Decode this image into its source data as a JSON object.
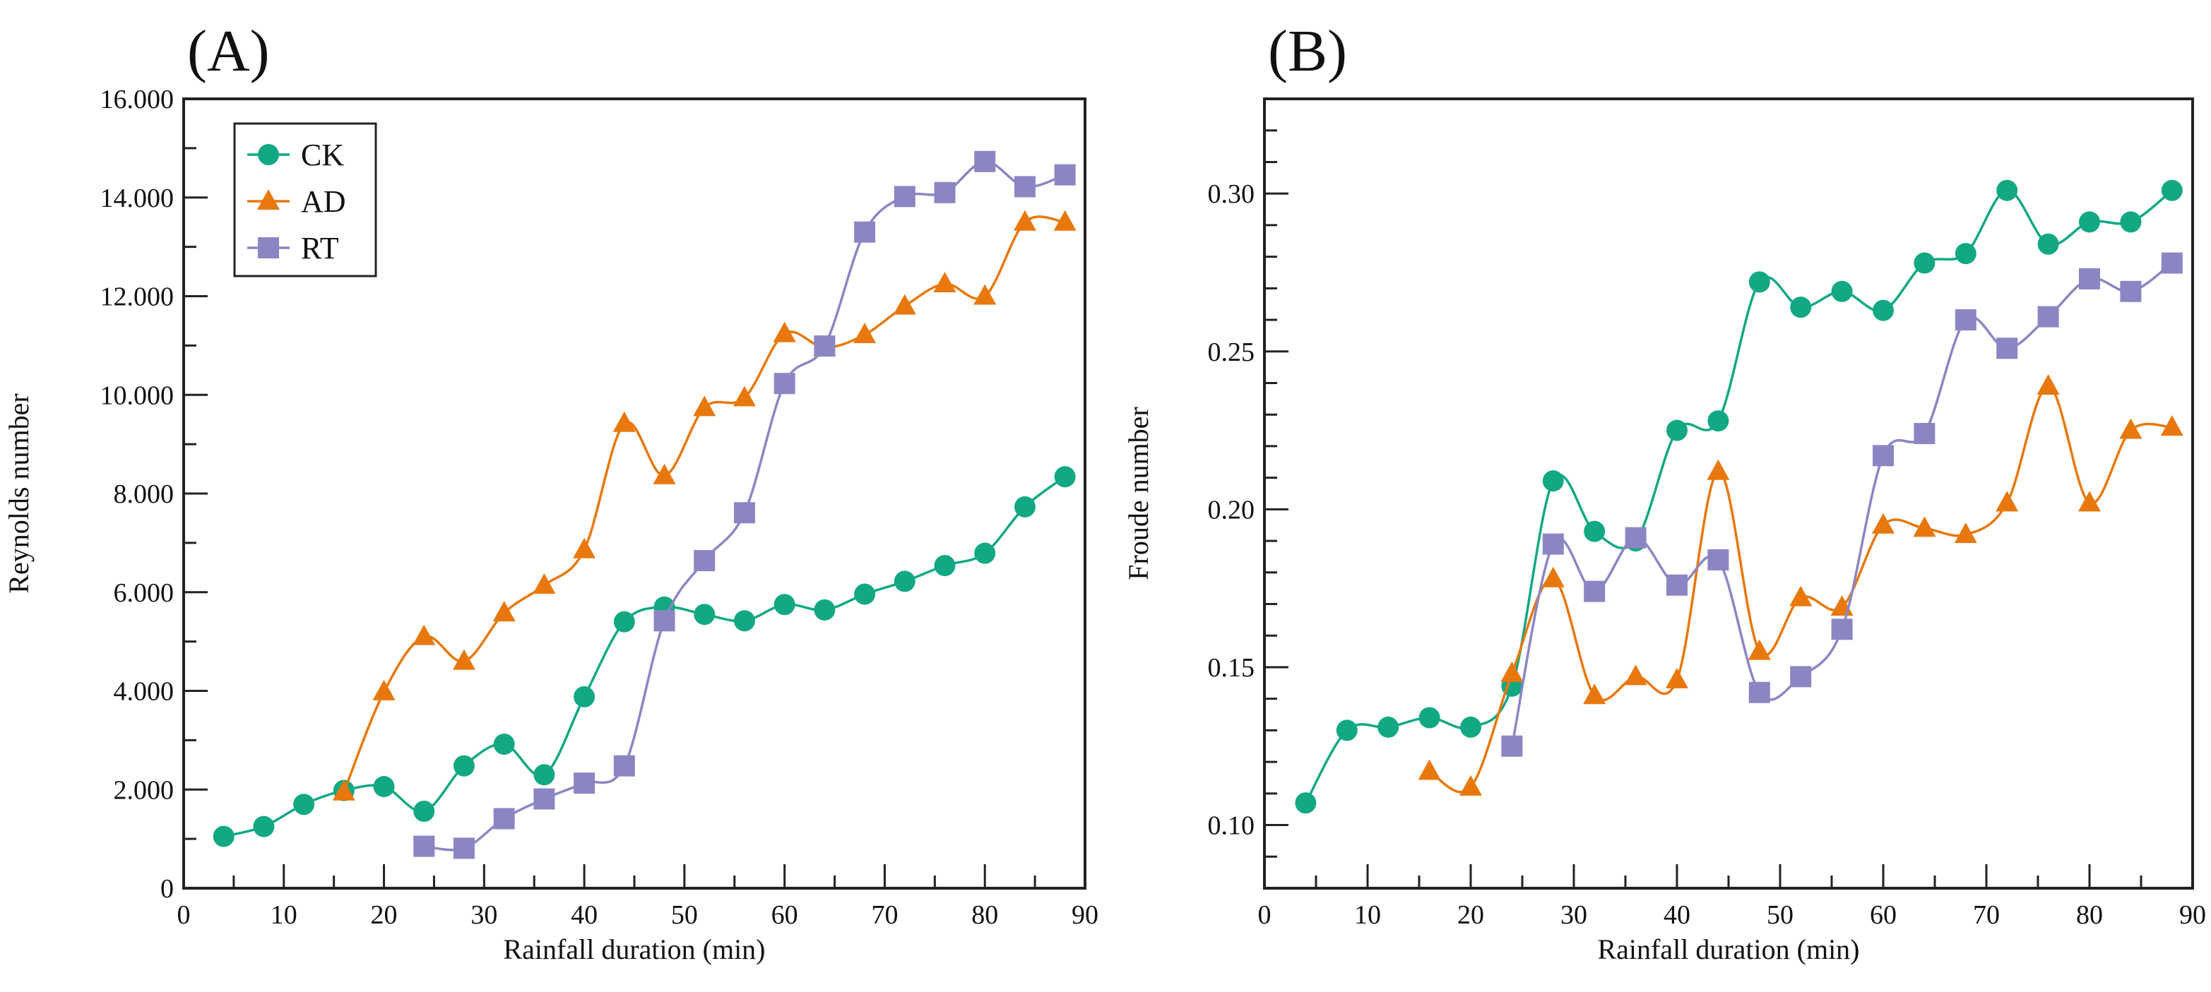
{
  "colors": {
    "CK": "#12a883",
    "AD": "#e8780d",
    "RT": "#8b86c3"
  },
  "chart_data": [
    {
      "panel_label": "(A)",
      "type": "line",
      "xlabel": "Rainfall duration (min)",
      "ylabel": "Reynolds number",
      "xlim": [
        0,
        90
      ],
      "ylim": [
        0,
        16000
      ],
      "xticks": [
        0,
        10,
        20,
        30,
        40,
        50,
        60,
        70,
        80,
        90
      ],
      "xtick_labels": [
        "0",
        "10",
        "20",
        "30",
        "40",
        "50",
        "60",
        "70",
        "80",
        "90"
      ],
      "yticks": [
        0,
        2000,
        4000,
        6000,
        8000,
        10000,
        12000,
        14000,
        16000
      ],
      "ytick_labels": [
        "0",
        "2.000",
        "4.000",
        "6.000",
        "8.000",
        "10.000",
        "12.000",
        "14.000",
        "16.000"
      ],
      "legend": "top-left",
      "grid": false,
      "series": [
        {
          "name": "CK",
          "marker": "circle",
          "x": [
            4,
            8,
            12,
            16,
            20,
            24,
            28,
            32,
            36,
            40,
            44,
            48,
            52,
            56,
            60,
            64,
            68,
            72,
            76,
            80,
            84,
            88
          ],
          "y": [
            1050,
            1250,
            1700,
            1980,
            2060,
            1560,
            2480,
            2920,
            2300,
            3880,
            5400,
            5700,
            5550,
            5420,
            5750,
            5640,
            5960,
            6220,
            6540,
            6790,
            7730,
            8340
          ]
        },
        {
          "name": "AD",
          "marker": "triangle",
          "x": [
            16,
            20,
            24,
            28,
            32,
            36,
            40,
            44,
            48,
            52,
            56,
            60,
            64,
            68,
            72,
            76,
            80,
            84,
            88
          ],
          "y": [
            1950,
            3980,
            5100,
            4600,
            5580,
            6140,
            6860,
            9420,
            8360,
            9740,
            9940,
            11240,
            10960,
            11220,
            11800,
            12250,
            12000,
            13500,
            13500
          ]
        },
        {
          "name": "RT",
          "marker": "square",
          "x": [
            24,
            28,
            32,
            36,
            40,
            44,
            48,
            52,
            56,
            60,
            64,
            68,
            72,
            76,
            80,
            84,
            88
          ],
          "y": [
            850,
            810,
            1410,
            1810,
            2130,
            2480,
            5420,
            6640,
            7610,
            10230,
            10990,
            13300,
            14020,
            14100,
            14730,
            14220,
            14460
          ]
        }
      ]
    },
    {
      "panel_label": "(B)",
      "type": "line",
      "xlabel": "Rainfall duration (min)",
      "ylabel": "Froude number",
      "xlim": [
        0,
        90
      ],
      "ylim": [
        0.08,
        0.33
      ],
      "xticks": [
        0,
        10,
        20,
        30,
        40,
        50,
        60,
        70,
        80,
        90
      ],
      "xtick_labels": [
        "0",
        "10",
        "20",
        "30",
        "40",
        "50",
        "60",
        "70",
        "80",
        "90"
      ],
      "yticks": [
        0.1,
        0.15,
        0.2,
        0.25,
        0.3
      ],
      "ytick_labels": [
        "0.10",
        "0.15",
        "0.20",
        "0.25",
        "0.30"
      ],
      "grid": false,
      "series": [
        {
          "name": "CK",
          "marker": "circle",
          "x": [
            4,
            8,
            12,
            16,
            20,
            24,
            28,
            32,
            36,
            40,
            44,
            48,
            52,
            56,
            60,
            64,
            68,
            72,
            76,
            80,
            84,
            88
          ],
          "y": [
            0.107,
            0.13,
            0.131,
            0.134,
            0.131,
            0.144,
            0.209,
            0.193,
            0.19,
            0.225,
            0.228,
            0.272,
            0.264,
            0.269,
            0.263,
            0.278,
            0.281,
            0.301,
            0.284,
            0.291,
            0.291,
            0.301
          ]
        },
        {
          "name": "AD",
          "marker": "triangle",
          "x": [
            16,
            20,
            24,
            28,
            32,
            36,
            40,
            44,
            48,
            52,
            56,
            60,
            64,
            68,
            72,
            76,
            80,
            84,
            88
          ],
          "y": [
            0.117,
            0.112,
            0.148,
            0.178,
            0.141,
            0.147,
            0.146,
            0.212,
            0.155,
            0.172,
            0.169,
            0.195,
            0.194,
            0.192,
            0.202,
            0.239,
            0.202,
            0.225,
            0.226
          ]
        },
        {
          "name": "RT",
          "marker": "square",
          "x": [
            24,
            28,
            32,
            36,
            40,
            44,
            48,
            52,
            56,
            60,
            64,
            68,
            72,
            76,
            80,
            84,
            88
          ],
          "y": [
            0.125,
            0.189,
            0.174,
            0.191,
            0.176,
            0.184,
            0.142,
            0.147,
            0.162,
            0.217,
            0.224,
            0.26,
            0.251,
            0.261,
            0.273,
            0.269,
            0.278
          ]
        }
      ]
    }
  ]
}
